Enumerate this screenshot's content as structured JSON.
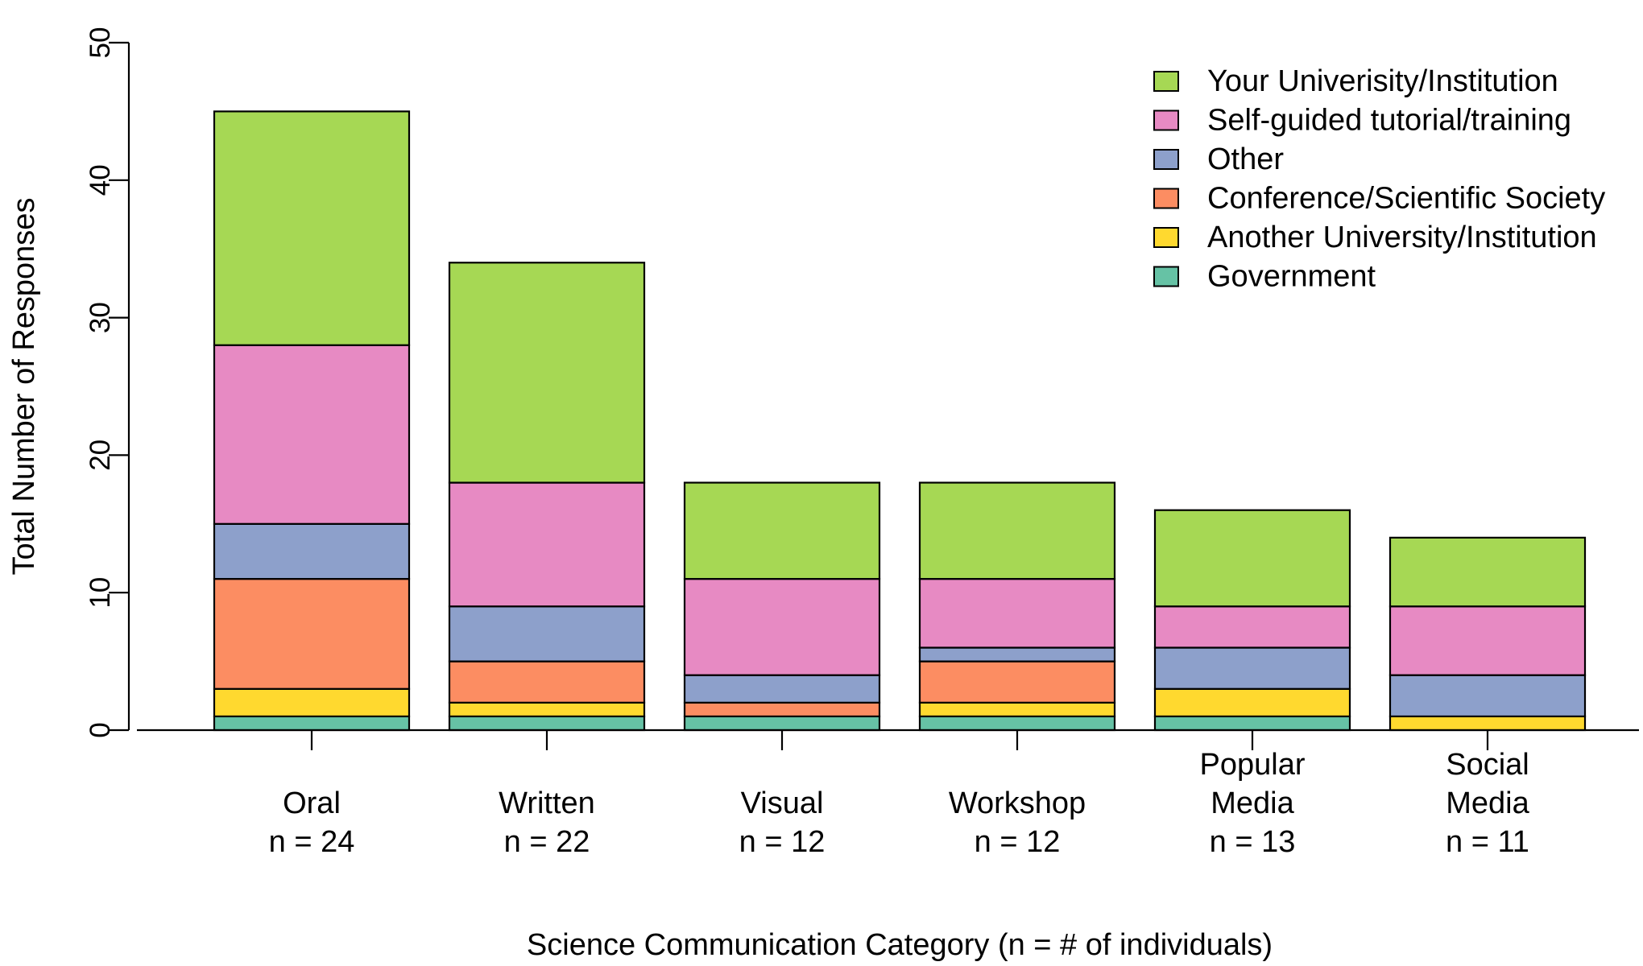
{
  "chart_data": {
    "type": "bar",
    "stacked": true,
    "xlabel": "Science Communication Category (n = # of individuals)",
    "ylabel": "Total Number of Responses",
    "ylim": [
      0,
      50
    ],
    "yticks": [
      "0",
      "10",
      "20",
      "30",
      "40",
      "50"
    ],
    "categories": [
      {
        "lines": [
          "Oral",
          "n = 24"
        ]
      },
      {
        "lines": [
          "Written",
          "n = 22"
        ]
      },
      {
        "lines": [
          "Visual",
          "n = 12"
        ]
      },
      {
        "lines": [
          "Workshop",
          "n = 12"
        ]
      },
      {
        "lines": [
          "Popular",
          "Media",
          "n = 13"
        ]
      },
      {
        "lines": [
          "Social",
          "Media",
          "n = 11"
        ]
      }
    ],
    "series": [
      {
        "name": "Government",
        "color": "#66c2a5",
        "values": [
          1,
          1,
          1,
          1,
          1,
          0
        ]
      },
      {
        "name": "Another University/Institution",
        "color": "#ffd92f",
        "values": [
          2,
          1,
          0,
          1,
          2,
          1
        ]
      },
      {
        "name": "Conference/Scientific Society",
        "color": "#fc8d62",
        "values": [
          8,
          3,
          1,
          3,
          0,
          0
        ]
      },
      {
        "name": "Other",
        "color": "#8da0cb",
        "values": [
          4,
          4,
          2,
          1,
          3,
          3
        ]
      },
      {
        "name": "Self-guided tutorial/training",
        "color": "#e78ac3",
        "values": [
          13,
          9,
          7,
          5,
          3,
          5
        ]
      },
      {
        "name": "Your Univerisity/Institution",
        "color": "#a6d854",
        "values": [
          17,
          16,
          7,
          7,
          7,
          5
        ]
      }
    ],
    "legend": {
      "position": "top-right",
      "order": [
        "Your Univerisity/Institution",
        "Self-guided tutorial/training",
        "Other",
        "Conference/Scientific Society",
        "Another University/Institution",
        "Government"
      ]
    }
  }
}
